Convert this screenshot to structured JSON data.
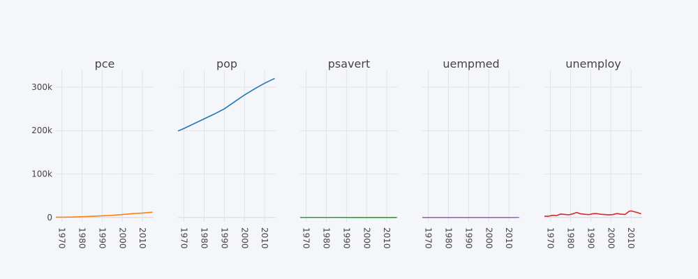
{
  "chart_data": {
    "type": "line",
    "layout": "small-multiples",
    "shared_y": true,
    "ylim": [
      -10000,
      340000
    ],
    "yticks": [
      {
        "value": 0,
        "label": "0"
      },
      {
        "value": 100000,
        "label": "100k"
      },
      {
        "value": 200000,
        "label": "200k"
      },
      {
        "value": 300000,
        "label": "300k"
      }
    ],
    "xlim": [
      1967,
      2015.5
    ],
    "xticks": [
      1970,
      1980,
      1990,
      2000,
      2010
    ],
    "grid": true,
    "legend": false,
    "panels": [
      {
        "title": "pce",
        "color": "#ff7f0e",
        "x": [
          1967,
          1970,
          1975,
          1980,
          1985,
          1990,
          1995,
          2000,
          2005,
          2010,
          2015
        ],
        "y": [
          500,
          650,
          1000,
          1700,
          2700,
          3800,
          5000,
          6800,
          8800,
          10200,
          12200
        ]
      },
      {
        "title": "pop",
        "color": "#1f77b4",
        "x": [
          1967,
          1970,
          1975,
          1980,
          1985,
          1990,
          1995,
          2000,
          2005,
          2010,
          2015
        ],
        "y": [
          199000,
          205000,
          216000,
          227000,
          238000,
          250000,
          266000,
          282000,
          296000,
          309000,
          320000
        ]
      },
      {
        "title": "psavert",
        "color": "#2ca02c",
        "x": [
          1967,
          1975,
          1985,
          1995,
          2005,
          2015
        ],
        "y": [
          12,
          12,
          11,
          6,
          3,
          7
        ]
      },
      {
        "title": "uempmed",
        "color": "#9467bd",
        "x": [
          1967,
          1975,
          1985,
          1995,
          2005,
          2015
        ],
        "y": [
          5,
          7,
          7,
          8,
          9,
          12
        ]
      },
      {
        "title": "unemploy",
        "color": "#d62728",
        "x": [
          1967,
          1969,
          1971,
          1973,
          1975,
          1977,
          1979,
          1981,
          1983,
          1985,
          1987,
          1989,
          1991,
          1993,
          1995,
          1997,
          1999,
          2001,
          2003,
          2005,
          2007,
          2009,
          2010,
          2012,
          2013,
          2015
        ],
        "y": [
          2900,
          2800,
          5000,
          4300,
          7900,
          6900,
          6100,
          8200,
          11500,
          8300,
          7400,
          6500,
          8600,
          8900,
          7400,
          6700,
          5900,
          6800,
          9000,
          7600,
          6900,
          14000,
          15100,
          12700,
          11500,
          8300
        ]
      }
    ]
  }
}
